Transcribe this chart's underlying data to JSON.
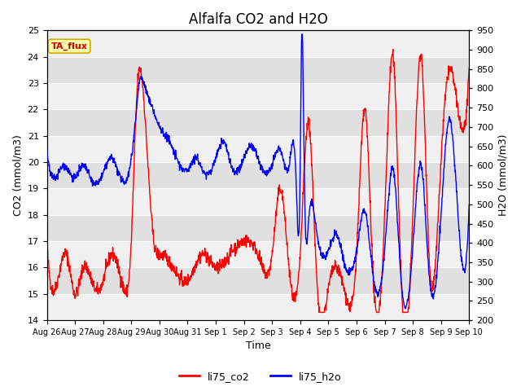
{
  "title": "Alfalfa CO2 and H2O",
  "xlabel": "Time",
  "ylabel_left": "CO2 (mmol/m3)",
  "ylabel_right": "H2O (mmol/m3)",
  "ylim_left": [
    14.0,
    25.0
  ],
  "ylim_right": [
    200,
    950
  ],
  "yticks_left": [
    14.0,
    15.0,
    16.0,
    17.0,
    18.0,
    19.0,
    20.0,
    21.0,
    22.0,
    23.0,
    24.0,
    25.0
  ],
  "yticks_right": [
    200,
    250,
    300,
    350,
    400,
    450,
    500,
    550,
    600,
    650,
    700,
    750,
    800,
    850,
    900,
    950
  ],
  "xtick_labels": [
    "Aug 26",
    "Aug 27",
    "Aug 28",
    "Aug 29",
    "Aug 30",
    "Aug 31",
    "Sep 1",
    "Sep 2",
    "Sep 3",
    "Sep 4",
    "Sep 5",
    "Sep 6",
    "Sep 7",
    "Sep 8",
    "Sep 9",
    "Sep 10"
  ],
  "legend_entries": [
    "li75_co2",
    "li75_h2o"
  ],
  "annotation_text": "TA_flux",
  "annotation_bg": "#ffffaa",
  "annotation_border": "#ccaa00",
  "bg_color_light": "#f0f0f0",
  "bg_color_dark": "#e0e0e0",
  "line_color_co2": "red",
  "line_color_h2o": "blue",
  "line_width": 1.0,
  "title_fontsize": 12,
  "label_fontsize": 9,
  "tick_fontsize": 8
}
